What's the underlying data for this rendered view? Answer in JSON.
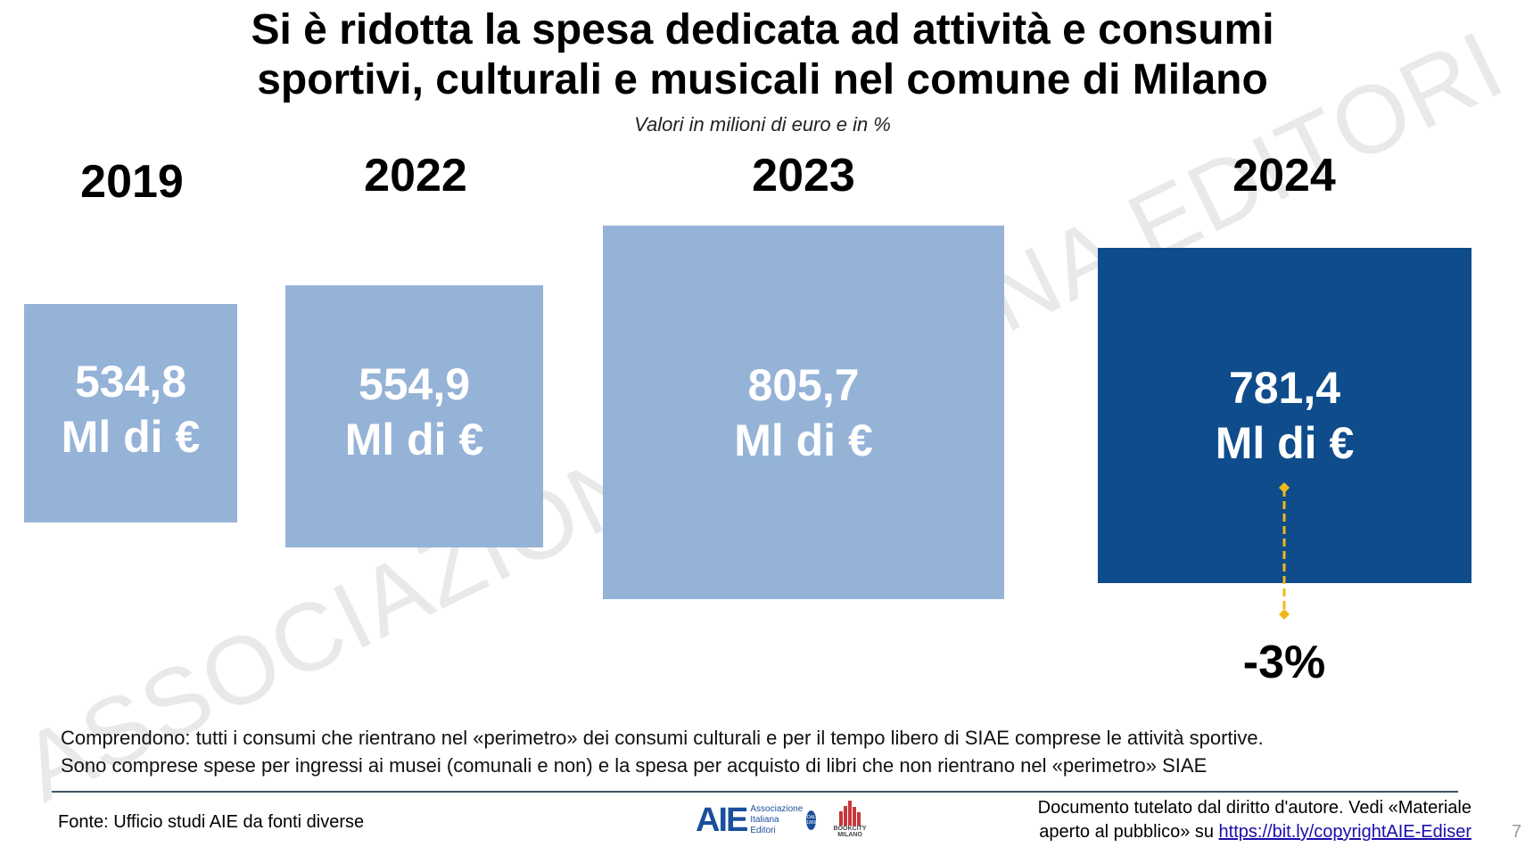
{
  "header": {
    "title_line1": "Si è ridotta la spesa dedicata ad attività e consumi",
    "title_line2": "sportivi, culturali e musicali nel comune di Milano",
    "subtitle": "Valori in milioni di euro e in %"
  },
  "chart_data": {
    "type": "bar",
    "categories": [
      "2019",
      "2022",
      "2023",
      "2024"
    ],
    "values": [
      534.8,
      554.9,
      805.7,
      781.4
    ],
    "value_labels": [
      "534,8",
      "554,9",
      "805,7",
      "781,4"
    ],
    "unit_label": "Ml di €",
    "change_label": "-3%",
    "colors": {
      "past": "#95B3D7",
      "current": "#0F4C8C",
      "arrow": "#F2B81B"
    }
  },
  "watermark": "ASSOCIAZIONE ITALIANA EDITORI",
  "notes": {
    "line1": "Comprendono: tutti i consumi che rientrano nel «perimetro» dei consumi culturali e per il tempo libero di SIAE comprese le attività sportive.",
    "line2": "Sono comprese spese per ingressi ai musei (comunali e non) e la spesa per acquisto di libri che non rientrano nel «perimetro» SIAE"
  },
  "footer": {
    "source": "Fonte: Ufficio studi AIE da fonti diverse",
    "logo_aie": {
      "mark": "AIE",
      "text1": "Associazione",
      "text2": "Italiana",
      "text3": "Editori",
      "badge": "DAL 1869"
    },
    "logo_bookcity": {
      "text1": "BOOKCITY",
      "text2": "MILANO"
    },
    "copyright_line1": "Documento tutelato dal diritto d'autore. Vedi «Materiale",
    "copyright_line2": "aperto al pubblico» su ",
    "copyright_link": "https://bit.ly/copyrightAIE-Ediser",
    "page_number": "7"
  }
}
